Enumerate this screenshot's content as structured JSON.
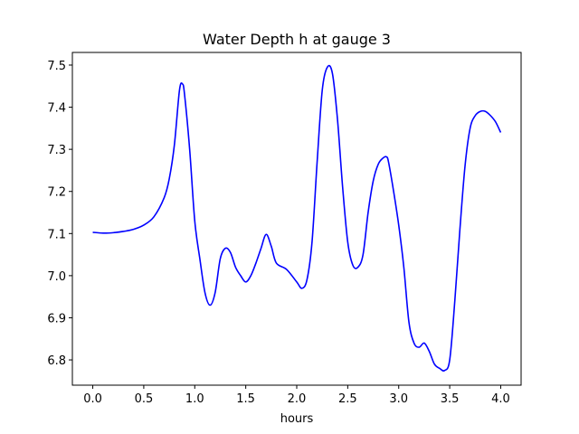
{
  "chart_data": {
    "type": "line",
    "title": "Water Depth h at gauge 3",
    "xlabel": "hours",
    "ylabel": "",
    "xlim": [
      -0.2,
      4.2
    ],
    "ylim": [
      6.74,
      7.53
    ],
    "xticks": [
      0.0,
      0.5,
      1.0,
      1.5,
      2.0,
      2.5,
      3.0,
      3.5,
      4.0
    ],
    "xtick_labels": [
      "0.0",
      "0.5",
      "1.0",
      "1.5",
      "2.0",
      "2.5",
      "3.0",
      "3.5",
      "4.0"
    ],
    "yticks": [
      6.8,
      6.9,
      7.0,
      7.1,
      7.2,
      7.3,
      7.4,
      7.5
    ],
    "ytick_labels": [
      "6.8",
      "6.9",
      "7.0",
      "7.1",
      "7.2",
      "7.3",
      "7.4",
      "7.5"
    ],
    "grid": false,
    "series": [
      {
        "color": "#0000ff",
        "x": [
          0.0,
          0.1,
          0.2,
          0.3,
          0.4,
          0.5,
          0.6,
          0.7,
          0.75,
          0.8,
          0.85,
          0.88,
          0.9,
          0.95,
          1.0,
          1.05,
          1.1,
          1.15,
          1.2,
          1.25,
          1.3,
          1.35,
          1.4,
          1.45,
          1.5,
          1.55,
          1.6,
          1.65,
          1.7,
          1.75,
          1.8,
          1.9,
          2.0,
          2.05,
          2.1,
          2.15,
          2.2,
          2.25,
          2.3,
          2.35,
          2.4,
          2.45,
          2.5,
          2.55,
          2.6,
          2.65,
          2.7,
          2.75,
          2.8,
          2.85,
          2.88,
          2.9,
          2.95,
          3.0,
          3.05,
          3.1,
          3.15,
          3.2,
          3.25,
          3.3,
          3.35,
          3.4,
          3.45,
          3.5,
          3.55,
          3.6,
          3.65,
          3.7,
          3.75,
          3.8,
          3.85,
          3.9,
          3.95,
          4.0
        ],
        "y": [
          7.103,
          7.101,
          7.102,
          7.105,
          7.11,
          7.12,
          7.14,
          7.185,
          7.23,
          7.31,
          7.44,
          7.455,
          7.43,
          7.3,
          7.13,
          7.04,
          6.96,
          6.93,
          6.96,
          7.04,
          7.065,
          7.055,
          7.02,
          7.0,
          6.985,
          7.0,
          7.03,
          7.065,
          7.098,
          7.07,
          7.03,
          7.015,
          6.985,
          6.97,
          6.99,
          7.08,
          7.27,
          7.44,
          7.495,
          7.48,
          7.37,
          7.21,
          7.08,
          7.025,
          7.02,
          7.05,
          7.15,
          7.225,
          7.265,
          7.28,
          7.282,
          7.27,
          7.2,
          7.12,
          7.02,
          6.89,
          6.84,
          6.83,
          6.84,
          6.82,
          6.79,
          6.78,
          6.775,
          6.8,
          6.94,
          7.11,
          7.26,
          7.35,
          7.38,
          7.39,
          7.39,
          7.38,
          7.365,
          7.34
        ]
      }
    ]
  }
}
